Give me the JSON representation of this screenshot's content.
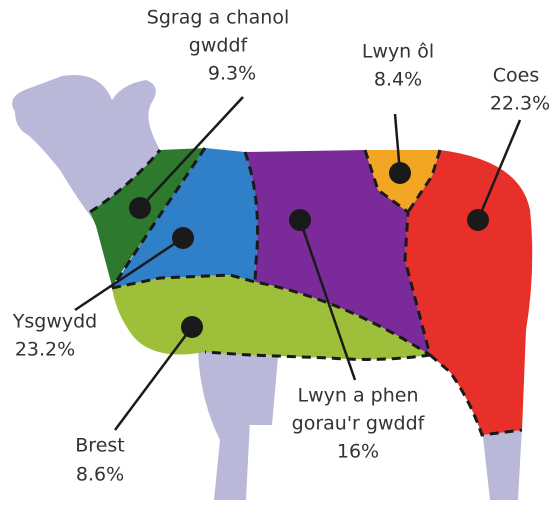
{
  "cuts": [
    {
      "name": [
        "Sgrag a chanol",
        "gwddf"
      ],
      "share": "9.3%"
    },
    {
      "name": [
        "Lwyn ôl"
      ],
      "share": "8.4%"
    },
    {
      "name": [
        "Coes"
      ],
      "share": "22.3%"
    },
    {
      "name": [
        "Ysgwydd"
      ],
      "share": "23.2%"
    },
    {
      "name": [
        "Brest"
      ],
      "share": "8.6%"
    },
    {
      "name": [
        "Lwyn a phen",
        "gorau'r gwddf"
      ],
      "share": "16%"
    }
  ]
}
